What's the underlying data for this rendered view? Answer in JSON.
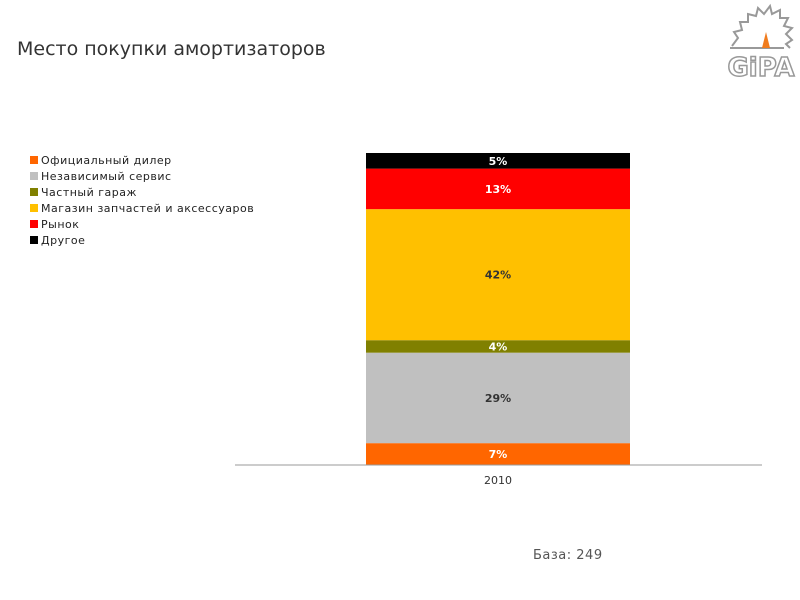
{
  "title": "Место покупки амортизаторов",
  "logo_text": "GiPA",
  "base_label": "База: 249",
  "chart_data": {
    "type": "bar",
    "stacked": true,
    "categories": [
      "2010"
    ],
    "series": [
      {
        "name": "Официальный дилер",
        "values": [
          7
        ],
        "color": "#FF6600",
        "label_color": "#ffffff"
      },
      {
        "name": "Независимый сервис",
        "values": [
          29
        ],
        "color": "#C0C0C0",
        "label_color": "#333333"
      },
      {
        "name": "Частный гараж",
        "values": [
          4
        ],
        "color": "#808000",
        "label_color": "#ffffff"
      },
      {
        "name": "Магазин запчастей и аксессуаров",
        "values": [
          42
        ],
        "color": "#FFC000",
        "label_color": "#333333"
      },
      {
        "name": "Рынок",
        "values": [
          13
        ],
        "color": "#FF0000",
        "label_color": "#ffffff"
      },
      {
        "name": "Другое",
        "values": [
          5
        ],
        "color": "#000000",
        "label_color": "#ffffff"
      }
    ],
    "ylim": [
      0,
      100
    ],
    "legend": "top-left"
  }
}
